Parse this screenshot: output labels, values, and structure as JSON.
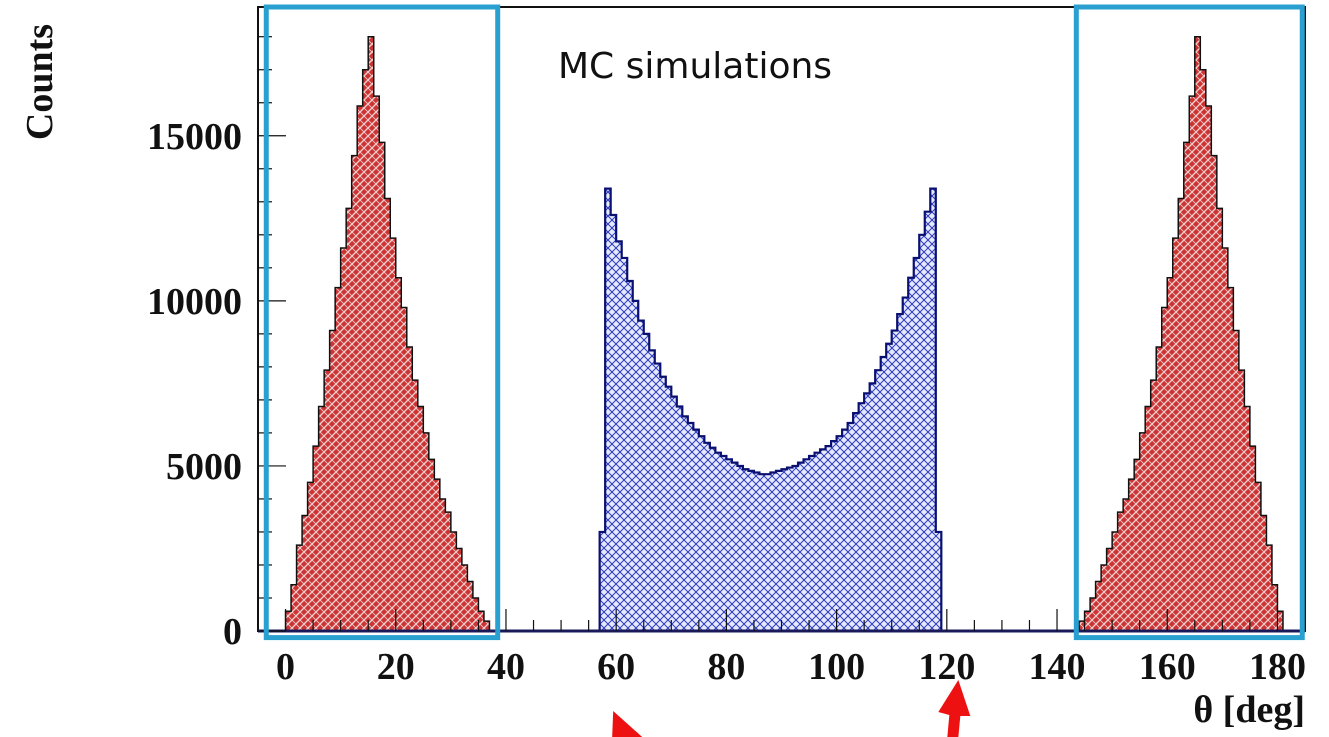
{
  "chart_data": {
    "type": "bar",
    "xlabel": "θ [deg]",
    "ylabel": "Counts",
    "xlim": [
      -5,
      185
    ],
    "ylim": [
      0,
      18900
    ],
    "x_ticks": [
      0,
      20,
      40,
      60,
      80,
      100,
      120,
      140,
      160,
      180
    ],
    "y_ticks": [
      0,
      5000,
      10000,
      15000
    ],
    "bin_width": 1,
    "annotation": "MC simulations",
    "colors": {
      "red_fill": "#cc3333",
      "red_hatch": "#f4d0d0",
      "blue_fill": "#e6e9fb",
      "blue_hatch": "#2d3cc4",
      "blue_line": "#0a1070",
      "box": "#2aa0d0",
      "arrow": "#ee1111"
    },
    "series": [
      {
        "style": "red",
        "x_start": 0,
        "values": [
          600,
          1400,
          2600,
          3500,
          4500,
          5600,
          6800,
          7900,
          9100,
          10400,
          11600,
          12800,
          14400,
          15900,
          17000,
          18000,
          16200,
          14800,
          13100,
          11900,
          10700,
          9800,
          8600,
          7600,
          6800,
          6000,
          5200,
          4600,
          4000,
          3600,
          3000,
          2500,
          2000,
          1500,
          1000,
          600,
          300
        ]
      },
      {
        "style": "blue",
        "x_start": 57,
        "values": [
          3000,
          13400,
          12600,
          11800,
          11300,
          10600,
          10000,
          9400,
          9000,
          8500,
          8100,
          7700,
          7400,
          7100,
          6800,
          6500,
          6300,
          6100,
          5900,
          5700,
          5550,
          5400,
          5300,
          5200,
          5100,
          5000,
          4900,
          4850,
          4800,
          4750,
          4750,
          4800,
          4850,
          4900,
          4950,
          5000,
          5100,
          5200,
          5300,
          5400,
          5500,
          5600,
          5750,
          5900,
          6100,
          6300,
          6600,
          6900,
          7200,
          7500,
          7900,
          8300,
          8700,
          9100,
          9600,
          10100,
          10700,
          11300,
          12000,
          12700,
          13400,
          3000
        ]
      },
      {
        "style": "red",
        "x_start": 144,
        "values": [
          300,
          600,
          1000,
          1500,
          2000,
          2500,
          3000,
          3600,
          4000,
          4600,
          5200,
          6000,
          6800,
          7600,
          8600,
          9800,
          10700,
          11900,
          13100,
          14800,
          16200,
          18000,
          17000,
          15900,
          14400,
          12800,
          11600,
          10400,
          9100,
          7900,
          6800,
          5600,
          4500,
          3500,
          2600,
          1400,
          600
        ]
      }
    ],
    "boxes": [
      {
        "x_range": [
          -3.5,
          38.5
        ],
        "y_range": [
          -200,
          18900
        ]
      },
      {
        "x_range": [
          143.5,
          184.5
        ],
        "y_range": [
          -200,
          18900
        ]
      }
    ],
    "arrows": [
      {
        "direction": "down-right",
        "x": 60
      },
      {
        "direction": "up",
        "x": 121
      }
    ]
  }
}
